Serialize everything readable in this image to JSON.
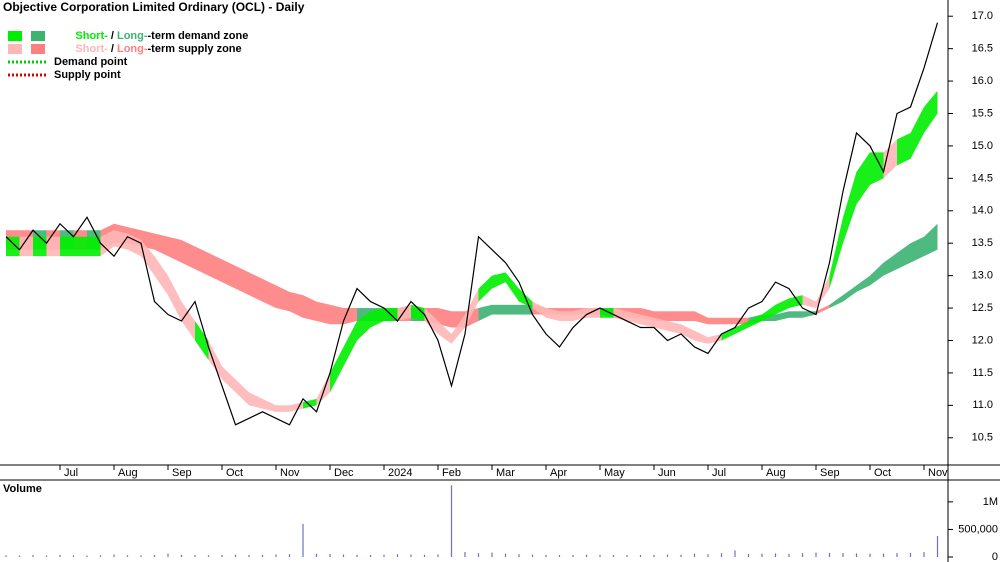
{
  "chart_data": {
    "type": "stock-zones",
    "title": "Objective Corporation Limited Ordinary (OCL) - Daily",
    "legend": {
      "demand_zone": [
        "Short-",
        " / ",
        "Long-",
        "-term demand zone"
      ],
      "supply_zone": [
        "Short-",
        " / ",
        "Long-",
        "-term supply zone"
      ],
      "demand_point": "Demand point",
      "supply_point": "Supply point"
    },
    "colors": {
      "price": "#000000",
      "short_demand": "#00ee00",
      "long_demand": "#3cb371",
      "short_supply": "#ffb6b6",
      "long_supply": "#ff7f7f",
      "demand_point": "#00cc00",
      "supply_point": "#dd0000",
      "volume": "#7070c0",
      "volume_label": "#552288"
    },
    "categories": [
      null,
      null,
      null,
      null,
      "Jul",
      null,
      null,
      null,
      "Aug",
      null,
      null,
      null,
      "Sep",
      null,
      null,
      null,
      "Oct",
      null,
      null,
      null,
      "Nov",
      null,
      null,
      null,
      "Dec",
      null,
      null,
      null,
      "2024",
      null,
      null,
      null,
      "Feb",
      null,
      null,
      null,
      "Mar",
      null,
      null,
      null,
      "Apr",
      null,
      null,
      null,
      "May",
      null,
      null,
      null,
      "Jun",
      null,
      null,
      null,
      "Jul",
      null,
      null,
      null,
      "Aug",
      null,
      null,
      null,
      "Sep",
      null,
      null,
      null,
      "Oct",
      null,
      null,
      null,
      "Nov",
      null
    ],
    "close": [
      13.6,
      13.4,
      13.7,
      13.5,
      13.8,
      13.6,
      13.9,
      13.5,
      13.3,
      13.6,
      13.5,
      12.6,
      12.4,
      12.3,
      12.6,
      11.9,
      11.3,
      10.7,
      10.8,
      10.9,
      10.8,
      10.7,
      11.1,
      10.9,
      11.5,
      12.3,
      12.8,
      12.6,
      12.5,
      12.3,
      12.6,
      12.4,
      12.0,
      11.3,
      12.1,
      13.6,
      13.4,
      13.2,
      12.9,
      12.4,
      12.1,
      11.9,
      12.2,
      12.4,
      12.5,
      12.4,
      12.3,
      12.2,
      12.2,
      12.0,
      12.1,
      11.9,
      11.8,
      12.1,
      12.2,
      12.5,
      12.6,
      12.9,
      12.8,
      12.5,
      12.4,
      13.2,
      14.3,
      15.2,
      15.0,
      14.6,
      15.5,
      15.6,
      16.2,
      16.9
    ],
    "short_zone": {
      "lower": [
        13.3,
        13.3,
        13.3,
        13.3,
        13.3,
        13.3,
        13.3,
        13.3,
        13.45,
        13.4,
        13.3,
        13.0,
        12.7,
        12.3,
        12.0,
        11.7,
        11.4,
        11.2,
        11.0,
        10.95,
        10.9,
        10.9,
        10.95,
        11.0,
        11.2,
        11.6,
        12.0,
        12.2,
        12.3,
        12.3,
        12.35,
        12.3,
        12.1,
        11.95,
        12.2,
        12.6,
        12.8,
        12.9,
        12.6,
        12.5,
        12.35,
        12.3,
        12.3,
        12.35,
        12.35,
        12.35,
        12.3,
        12.25,
        12.2,
        12.15,
        12.1,
        12.0,
        11.95,
        12.0,
        12.1,
        12.2,
        12.3,
        12.4,
        12.5,
        12.55,
        12.5,
        12.8,
        13.5,
        14.1,
        14.4,
        14.5,
        14.7,
        14.8,
        15.2,
        15.5
      ],
      "upper": [
        13.6,
        13.6,
        13.6,
        13.6,
        13.6,
        13.6,
        13.6,
        13.6,
        13.7,
        13.65,
        13.55,
        13.3,
        13.0,
        12.6,
        12.3,
        12.0,
        11.6,
        11.4,
        11.2,
        11.1,
        11.0,
        11.0,
        11.05,
        11.1,
        11.5,
        11.9,
        12.3,
        12.45,
        12.5,
        12.5,
        12.55,
        12.5,
        12.3,
        12.1,
        12.4,
        12.8,
        13.0,
        13.05,
        12.8,
        12.6,
        12.5,
        12.45,
        12.45,
        12.5,
        12.5,
        12.5,
        12.45,
        12.4,
        12.35,
        12.3,
        12.25,
        12.15,
        12.05,
        12.1,
        12.2,
        12.3,
        12.4,
        12.55,
        12.65,
        12.7,
        12.6,
        13.0,
        13.9,
        14.6,
        14.9,
        14.9,
        15.1,
        15.2,
        15.6,
        15.85
      ]
    },
    "long_zone": {
      "lower": [
        13.4,
        13.4,
        13.4,
        13.4,
        13.4,
        13.4,
        13.4,
        13.4,
        13.5,
        13.5,
        13.45,
        13.4,
        13.3,
        13.2,
        13.1,
        13.0,
        12.9,
        12.8,
        12.7,
        12.6,
        12.5,
        12.45,
        12.35,
        12.3,
        12.25,
        12.25,
        12.3,
        12.3,
        12.3,
        12.3,
        12.3,
        12.3,
        12.25,
        12.2,
        12.2,
        12.3,
        12.4,
        12.4,
        12.4,
        12.4,
        12.4,
        12.4,
        12.4,
        12.4,
        12.4,
        12.35,
        12.35,
        12.35,
        12.3,
        12.3,
        12.3,
        12.3,
        12.25,
        12.25,
        12.25,
        12.25,
        12.3,
        12.3,
        12.35,
        12.35,
        12.4,
        12.5,
        12.6,
        12.75,
        12.85,
        13.0,
        13.1,
        13.2,
        13.3,
        13.4
      ],
      "upper": [
        13.7,
        13.7,
        13.7,
        13.7,
        13.7,
        13.7,
        13.7,
        13.7,
        13.8,
        13.75,
        13.7,
        13.65,
        13.6,
        13.55,
        13.45,
        13.35,
        13.25,
        13.15,
        13.05,
        12.95,
        12.85,
        12.75,
        12.7,
        12.6,
        12.55,
        12.5,
        12.5,
        12.5,
        12.5,
        12.5,
        12.5,
        12.5,
        12.5,
        12.45,
        12.45,
        12.5,
        12.55,
        12.55,
        12.55,
        12.55,
        12.5,
        12.5,
        12.5,
        12.5,
        12.5,
        12.5,
        12.5,
        12.5,
        12.45,
        12.45,
        12.45,
        12.45,
        12.35,
        12.35,
        12.35,
        12.35,
        12.4,
        12.4,
        12.45,
        12.45,
        12.45,
        12.55,
        12.7,
        12.85,
        13.0,
        13.2,
        13.35,
        13.5,
        13.6,
        13.8
      ]
    },
    "ylim": [
      10.08,
      17.25
    ],
    "yticks": [
      10.5,
      {
        "value": 11,
        "label": "11.0"
      },
      11.5,
      {
        "value": 12,
        "label": "12.0"
      },
      12.5,
      {
        "value": 13,
        "label": "13.0"
      },
      13.5,
      {
        "value": 14,
        "label": "14.0"
      },
      14.5,
      {
        "value": 15,
        "label": "15.0"
      },
      15.5,
      {
        "value": 16,
        "label": "16.0"
      },
      16.5,
      {
        "value": 17,
        "label": "17.0"
      }
    ],
    "volume": {
      "label": "Volume",
      "values": [
        30000,
        25000,
        35000,
        28000,
        40000,
        30000,
        26000,
        32000,
        45000,
        30000,
        28000,
        35000,
        60000,
        40000,
        35000,
        30000,
        38000,
        42000,
        36000,
        40000,
        45000,
        50000,
        600000,
        60000,
        55000,
        45000,
        40000,
        38000,
        42000,
        50000,
        45000,
        40000,
        48000,
        1300000,
        90000,
        70000,
        80000,
        60000,
        50000,
        45000,
        40000,
        35000,
        38000,
        42000,
        40000,
        36000,
        34000,
        38000,
        40000,
        45000,
        42000,
        60000,
        50000,
        70000,
        120000,
        55000,
        60000,
        65000,
        58000,
        70000,
        80000,
        75000,
        70000,
        65000,
        60000,
        62000,
        70000,
        75000,
        90000,
        380000
      ],
      "ylim": [
        0,
        1360000
      ],
      "yticks": [
        0,
        {
          "value": 500000,
          "label": "500,000"
        },
        {
          "value": 1000000,
          "label": "1M"
        }
      ]
    }
  }
}
